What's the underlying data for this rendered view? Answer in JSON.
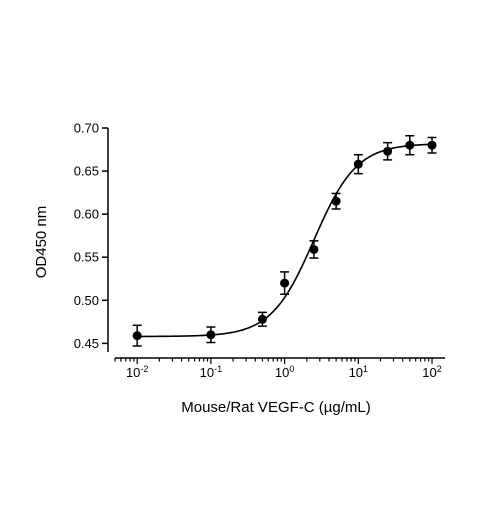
{
  "chart_data": {
    "type": "scatter",
    "xlabel": "Mouse/Rat VEGF-C (µg/mL)",
    "ylabel": "OD450 nm",
    "x_scale": "log",
    "xlim": [
      0.005,
      150
    ],
    "ylim": [
      0.44,
      0.7
    ],
    "x_ticks": [
      {
        "value": 0.01,
        "base": "10",
        "exp": "-2"
      },
      {
        "value": 0.1,
        "base": "10",
        "exp": "-1"
      },
      {
        "value": 1,
        "base": "10",
        "exp": "0"
      },
      {
        "value": 10,
        "base": "10",
        "exp": "1"
      },
      {
        "value": 100,
        "base": "10",
        "exp": "2"
      }
    ],
    "y_ticks": [
      {
        "value": 0.45,
        "label": "0.45"
      },
      {
        "value": 0.5,
        "label": "0.50"
      },
      {
        "value": 0.55,
        "label": "0.55"
      },
      {
        "value": 0.6,
        "label": "0.60"
      },
      {
        "value": 0.65,
        "label": "0.65"
      },
      {
        "value": 0.7,
        "label": "0.70"
      }
    ],
    "series": [
      {
        "points": [
          {
            "x": 0.01,
            "y": 0.459,
            "err": 0.012
          },
          {
            "x": 0.1,
            "y": 0.46,
            "err": 0.009
          },
          {
            "x": 0.5,
            "y": 0.478,
            "err": 0.008
          },
          {
            "x": 1,
            "y": 0.52,
            "err": 0.013
          },
          {
            "x": 2.5,
            "y": 0.559,
            "err": 0.01
          },
          {
            "x": 5,
            "y": 0.615,
            "err": 0.009
          },
          {
            "x": 10,
            "y": 0.658,
            "err": 0.011
          },
          {
            "x": 25,
            "y": 0.673,
            "err": 0.01
          },
          {
            "x": 50,
            "y": 0.68,
            "err": 0.011
          },
          {
            "x": 100,
            "y": 0.68,
            "err": 0.009
          }
        ],
        "fit": {
          "model": "4PL",
          "bottom": 0.458,
          "top": 0.682,
          "ec50": 2.5,
          "hill": 1.5
        }
      }
    ],
    "grid": false,
    "legend": "none",
    "colors": {
      "marker": "#000000",
      "line": "#000000",
      "axis": "#000000"
    }
  }
}
